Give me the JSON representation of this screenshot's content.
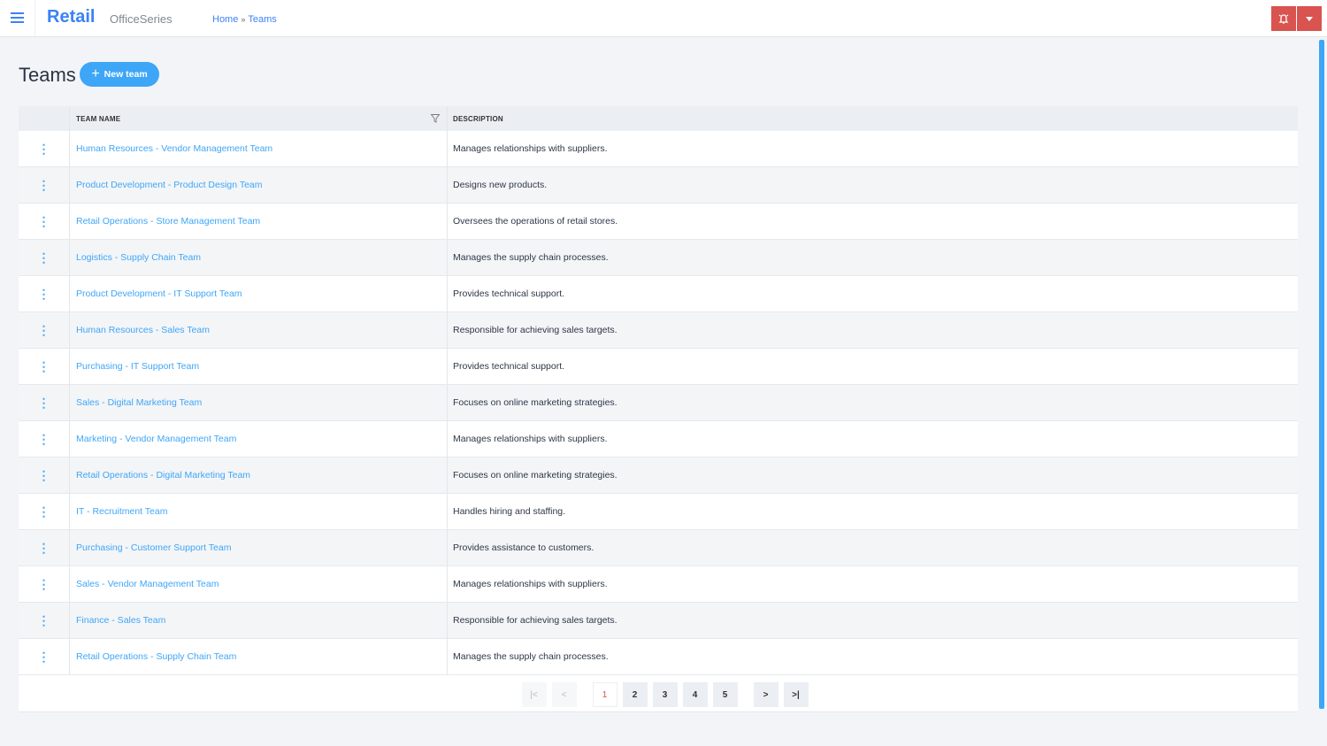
{
  "header": {
    "brand": "Retail",
    "product": "OfficeSeries",
    "breadcrumb": [
      "Home",
      "Teams"
    ],
    "breadcrumb_sep": "»"
  },
  "page": {
    "title": "Teams",
    "new_button": "New team"
  },
  "table": {
    "columns": [
      "TEAM NAME",
      "DESCRIPTION"
    ],
    "rows": [
      {
        "name": "Human Resources - Vendor Management Team",
        "description": "Manages relationships with suppliers."
      },
      {
        "name": "Product Development - Product Design Team",
        "description": "Designs new products."
      },
      {
        "name": "Retail Operations - Store Management Team",
        "description": "Oversees the operations of retail stores."
      },
      {
        "name": "Logistics - Supply Chain Team",
        "description": "Manages the supply chain processes."
      },
      {
        "name": "Product Development - IT Support Team",
        "description": "Provides technical support."
      },
      {
        "name": "Human Resources - Sales Team",
        "description": "Responsible for achieving sales targets."
      },
      {
        "name": "Purchasing - IT Support Team",
        "description": "Provides technical support."
      },
      {
        "name": "Sales - Digital Marketing Team",
        "description": "Focuses on online marketing strategies."
      },
      {
        "name": "Marketing - Vendor Management Team",
        "description": "Manages relationships with suppliers."
      },
      {
        "name": "Retail Operations - Digital Marketing Team",
        "description": "Focuses on online marketing strategies."
      },
      {
        "name": "IT - Recruitment Team",
        "description": "Handles hiring and staffing."
      },
      {
        "name": "Purchasing - Customer Support Team",
        "description": "Provides assistance to customers."
      },
      {
        "name": "Sales - Vendor Management Team",
        "description": "Manages relationships with suppliers."
      },
      {
        "name": "Finance - Sales Team",
        "description": "Responsible for achieving sales targets."
      },
      {
        "name": "Retail Operations - Supply Chain Team",
        "description": "Manages the supply chain processes."
      }
    ]
  },
  "pagination": {
    "pages": [
      "1",
      "2",
      "3",
      "4",
      "5"
    ],
    "current": "1",
    "first": "|<",
    "prev": "<",
    "next": ">",
    "last": ">|"
  },
  "colors": {
    "accent": "#3ea6f7",
    "brand": "#3b82f6",
    "alert": "#d9534f"
  }
}
